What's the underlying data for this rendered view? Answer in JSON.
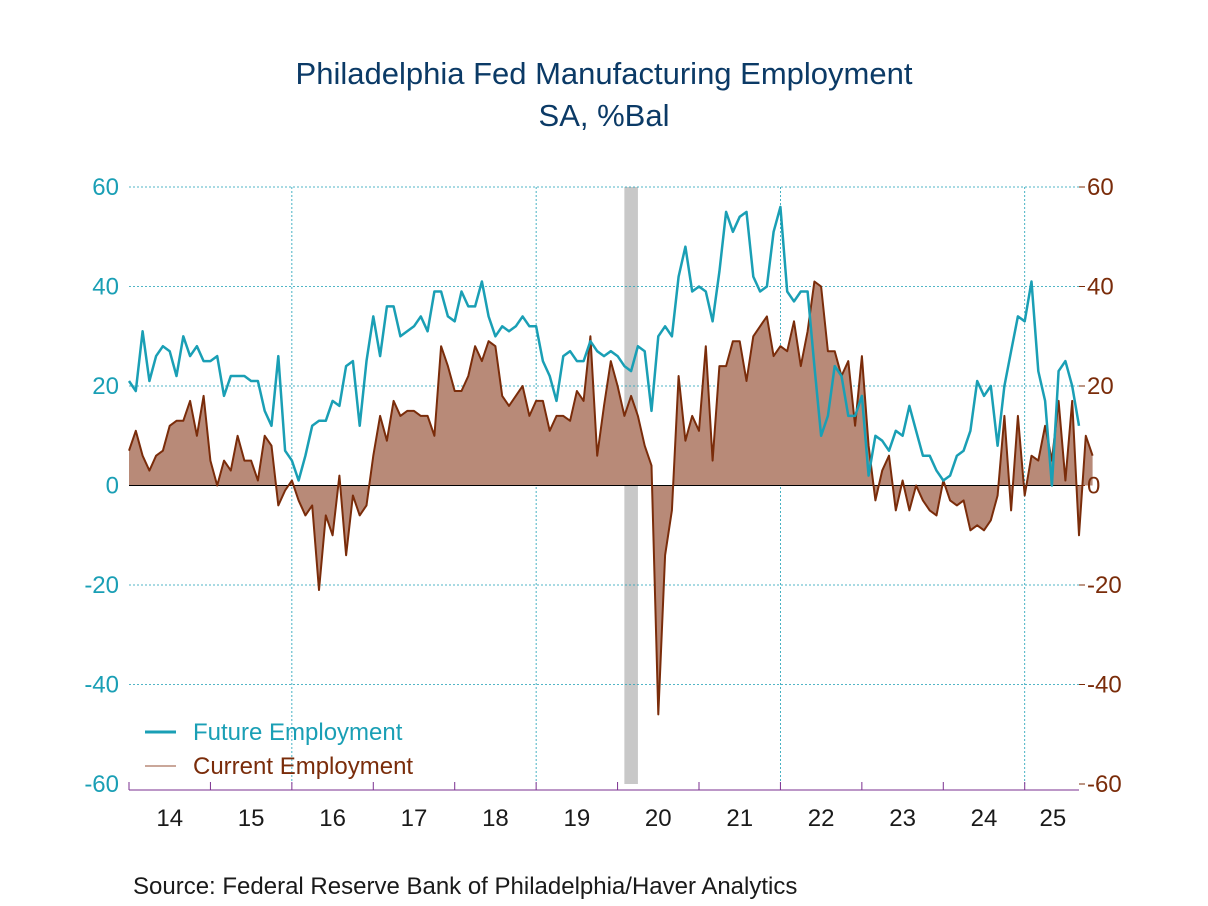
{
  "colors": {
    "future": "#1a9fb5",
    "current_line": "#7a2c0a",
    "current_fill": "#b88a78",
    "recession": "#c8c8c8",
    "grid": "#1a9fb5",
    "title": "#0b3a66",
    "axis_purple": "#7a2f8f"
  },
  "chart_data": {
    "type": "line",
    "title": "Philadelphia Fed Manufacturing Employment",
    "subtitle": "SA, %Bal",
    "source": "Source:  Federal Reserve Bank of Philadelphia/Haver Analytics",
    "x_start": "2014-01",
    "x_frequency": "monthly",
    "x_ticks": [
      "14",
      "15",
      "16",
      "17",
      "18",
      "19",
      "20",
      "21",
      "22",
      "23",
      "24",
      "25"
    ],
    "left_axis": {
      "ylim": [
        -60,
        60
      ],
      "ticks": [
        "60",
        "40",
        "20",
        "0",
        "-20",
        "-40",
        "-60"
      ]
    },
    "right_axis": {
      "ylim": [
        -60,
        60
      ],
      "ticks": [
        "60",
        "40",
        "20",
        "0",
        "-20",
        "-40",
        "-60"
      ]
    },
    "grid": true,
    "legend_position": "bottom-left",
    "recession_shading": [
      "2020-02",
      "2020-04"
    ],
    "series": [
      {
        "name": "Future Employment",
        "style": "line",
        "values": [
          21,
          19,
          31,
          21,
          26,
          28,
          27,
          22,
          30,
          26,
          28,
          25,
          25,
          26,
          18,
          22,
          22,
          22,
          21,
          21,
          15,
          12,
          26,
          7,
          5,
          1,
          6,
          12,
          13,
          13,
          17,
          16,
          24,
          25,
          12,
          25,
          34,
          26,
          36,
          36,
          30,
          31,
          32,
          34,
          31,
          39,
          39,
          34,
          33,
          39,
          36,
          36,
          41,
          34,
          30,
          32,
          31,
          32,
          34,
          32,
          32,
          25,
          22,
          17,
          26,
          27,
          25,
          25,
          29,
          27,
          26,
          27,
          26,
          24,
          23,
          28,
          27,
          15,
          30,
          32,
          30,
          42,
          48,
          39,
          40,
          39,
          33,
          43,
          55,
          51,
          54,
          55,
          42,
          39,
          40,
          51,
          56,
          39,
          37,
          39,
          39,
          24,
          10,
          14,
          24,
          22,
          14,
          14,
          18,
          2,
          10,
          9,
          7,
          11,
          10,
          16,
          11,
          6,
          6,
          3,
          1,
          2,
          6,
          7,
          11,
          21,
          18,
          20,
          8,
          20,
          27,
          34,
          33,
          41,
          23,
          17,
          0,
          23,
          25,
          20,
          12
        ]
      },
      {
        "name": "Current Employment",
        "style": "area",
        "values": [
          7,
          11,
          6,
          3,
          6,
          7,
          12,
          13,
          13,
          17,
          10,
          18,
          5,
          0,
          5,
          3,
          10,
          5,
          5,
          1,
          10,
          8,
          -4,
          -1,
          1,
          -3,
          -6,
          -4,
          -21,
          -6,
          -10,
          2,
          -14,
          -2,
          -6,
          -4,
          6,
          14,
          9,
          17,
          14,
          15,
          15,
          14,
          14,
          10,
          28,
          24,
          19,
          19,
          22,
          28,
          25,
          29,
          28,
          18,
          16,
          18,
          20,
          14,
          17,
          17,
          11,
          14,
          14,
          13,
          19,
          17,
          30,
          6,
          16,
          25,
          20,
          14,
          18,
          14,
          8,
          4,
          -46,
          -14,
          -5,
          22,
          9,
          14,
          11,
          28,
          5,
          24,
          24,
          29,
          29,
          21,
          30,
          32,
          34,
          26,
          28,
          27,
          33,
          24,
          31,
          41,
          40,
          27,
          27,
          22,
          25,
          12,
          26,
          8,
          -3,
          3,
          6,
          -5,
          1,
          -5,
          0,
          -3,
          -5,
          -6,
          1,
          -3,
          -4,
          -3,
          -9,
          -8,
          -9,
          -7,
          -2,
          14,
          -5,
          14,
          -2,
          6,
          5,
          12,
          5,
          17,
          1,
          17,
          -10,
          10,
          6
        ]
      }
    ]
  }
}
